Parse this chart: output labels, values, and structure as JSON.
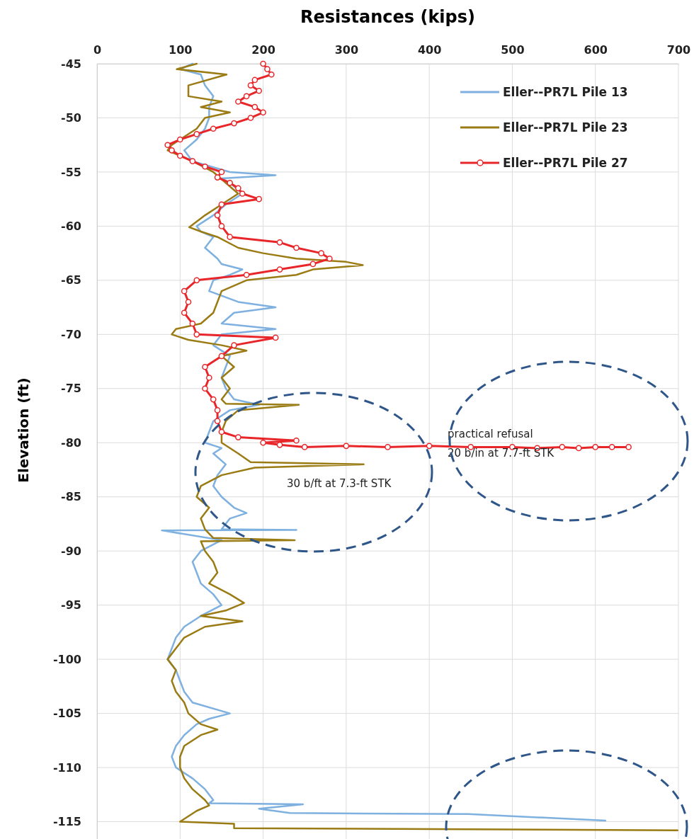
{
  "chart_data": {
    "type": "line",
    "xlabel": "Resistances (kips)",
    "ylabel": "Elevation (ft)",
    "xlim": [
      0,
      700
    ],
    "xticks": [
      0,
      100,
      200,
      300,
      400,
      500,
      600,
      700
    ],
    "ylim": [
      -116.6,
      -45
    ],
    "yticks": [
      -45,
      -50,
      -55,
      -60,
      -65,
      -70,
      -75,
      -80,
      -85,
      -90,
      -95,
      -100,
      -105,
      -110,
      -115
    ],
    "grid": true,
    "legend": "top right",
    "series": [
      {
        "name": "Eller--PR7L Pile 13",
        "color": "#7eb0e0",
        "marker": "none",
        "x": [
          115,
          100,
          125,
          130,
          140,
          135,
          135,
          130,
          120,
          105,
          115,
          160,
          215,
          150,
          160,
          175,
          155,
          140,
          120,
          125,
          140,
          130,
          145,
          150,
          175,
          160,
          140,
          135,
          170,
          215,
          165,
          150,
          215,
          150,
          140,
          160,
          155,
          150,
          155,
          165,
          195,
          160,
          140,
          135,
          130,
          150,
          140,
          155,
          145,
          140,
          150,
          165,
          180,
          160,
          150,
          240,
          78,
          150,
          125,
          115,
          120,
          125,
          140,
          150,
          125,
          105,
          95,
          90,
          85,
          95,
          100,
          105,
          115,
          160,
          135,
          120,
          105,
          95,
          90,
          95,
          115,
          130,
          140,
          135,
          248,
          195,
          232,
          447,
          612
        ],
        "values": [
          -45,
          -45.5,
          -46,
          -47,
          -48,
          -49,
          -50,
          -51,
          -52,
          -53,
          -54,
          -55,
          -55.3,
          -55.6,
          -56,
          -57,
          -58,
          -59,
          -60,
          -60.5,
          -61,
          -62,
          -63,
          -63.5,
          -64,
          -64.5,
          -65,
          -66,
          -67,
          -67.5,
          -68,
          -69,
          -69.5,
          -70,
          -71,
          -72,
          -73,
          -74,
          -75,
          -76,
          -76.5,
          -77,
          -78,
          -79,
          -80,
          -80.5,
          -81,
          -82,
          -83,
          -84,
          -85,
          -86,
          -86.5,
          -87,
          -88,
          -88.05,
          -88.1,
          -89,
          -90,
          -91,
          -92,
          -93,
          -94,
          -95,
          -96,
          -97,
          -98,
          -99,
          -100,
          -101,
          -102,
          -103,
          -104,
          -105,
          -105.5,
          -106,
          -107,
          -108,
          -109,
          -110,
          -111,
          -112,
          -113,
          -113.3,
          -113.4,
          -113.8,
          -114.2,
          -114.3,
          -114.9
        ]
      },
      {
        "name": "Eller--PR7L Pile 23",
        "color": "#9a7b14",
        "marker": "none",
        "x": [
          120,
          96,
          156,
          110,
          110,
          150,
          125,
          160,
          130,
          120,
          100,
          90,
          85,
          100,
          115,
          140,
          155,
          170,
          150,
          130,
          111,
          125,
          145,
          170,
          200,
          240,
          300,
          320,
          260,
          240,
          180,
          150,
          145,
          140,
          125,
          95,
          90,
          110,
          150,
          180,
          150,
          165,
          150,
          160,
          150,
          155,
          243,
          170,
          155,
          150,
          150,
          170,
          185,
          321,
          190,
          150,
          125,
          120,
          135,
          125,
          130,
          140,
          238,
          125,
          130,
          140,
          145,
          135,
          160,
          177,
          155,
          125,
          175,
          130,
          105,
          95,
          85,
          95,
          90,
          95,
          105,
          110,
          125,
          145,
          125,
          105,
          100,
          100,
          105,
          115,
          130,
          135,
          120,
          100,
          165,
          165,
          699
        ],
        "values": [
          -45,
          -45.5,
          -46,
          -47,
          -48,
          -48.5,
          -49,
          -49.5,
          -50,
          -51,
          -52,
          -52.5,
          -53,
          -53.5,
          -54,
          -55,
          -56,
          -57,
          -58,
          -59,
          -60.1,
          -60.5,
          -61,
          -62,
          -62.5,
          -63,
          -63.3,
          -63.6,
          -64,
          -64.5,
          -65,
          -66,
          -67,
          -68,
          -69,
          -69.5,
          -70,
          -70.5,
          -71,
          -71.5,
          -72,
          -73,
          -74,
          -75,
          -76,
          -76.4,
          -76.5,
          -77,
          -78,
          -79,
          -80,
          -81,
          -81.8,
          -82,
          -82.3,
          -83,
          -84,
          -85,
          -86,
          -87,
          -88,
          -88.8,
          -89,
          -89.1,
          -90,
          -91,
          -92,
          -93,
          -94,
          -94.8,
          -95.5,
          -96,
          -96.5,
          -97,
          -98,
          -99,
          -100,
          -101,
          -102,
          -103,
          -104,
          -105,
          -106,
          -106.5,
          -107,
          -108,
          -109,
          -110,
          -111,
          -112,
          -113,
          -113.5,
          -114,
          -115,
          -115.2,
          -115.6,
          -115.8
        ]
      },
      {
        "name": "Eller--PR7L Pile 27",
        "color": "#e8262a",
        "marker": "circle",
        "x": [
          200,
          205,
          210,
          190,
          185,
          195,
          180,
          170,
          190,
          200,
          185,
          165,
          140,
          120,
          100,
          85,
          90,
          100,
          115,
          130,
          150,
          145,
          160,
          170,
          175,
          195,
          150,
          145,
          150,
          160,
          220,
          240,
          270,
          280,
          260,
          220,
          180,
          120,
          105,
          110,
          105,
          115,
          120,
          215,
          165,
          150,
          130,
          135,
          130,
          140,
          145,
          145,
          150,
          170,
          240,
          200,
          220,
          250,
          300,
          350,
          400,
          450,
          500,
          530,
          560,
          580,
          600,
          620,
          640
        ],
        "values": [
          -45,
          -45.5,
          -46,
          -46.5,
          -47,
          -47.5,
          -48,
          -48.5,
          -49,
          -49.5,
          -50,
          -50.5,
          -51,
          -51.5,
          -52,
          -52.5,
          -53,
          -53.5,
          -54,
          -54.5,
          -55,
          -55.5,
          -56,
          -56.5,
          -57,
          -57.5,
          -58,
          -59,
          -60,
          -61,
          -61.5,
          -62,
          -62.5,
          -63,
          -63.5,
          -64,
          -64.5,
          -65,
          -66,
          -67,
          -68,
          -69,
          -70,
          -70.3,
          -71,
          -72,
          -73,
          -74,
          -75,
          -76,
          -77,
          -78,
          -79,
          -79.5,
          -79.8,
          -80,
          -80.2,
          -80.4,
          -80.3,
          -80.4,
          -80.3,
          -80.4,
          -80.4,
          -80.5,
          -80.4,
          -80.5,
          -80.4,
          -80.4,
          -80.4
        ]
      }
    ],
    "annotations": [
      "30 b/ft at 7.3-ft STK",
      "practical refusal",
      "20 b/in at 7.7-ft STK"
    ]
  }
}
